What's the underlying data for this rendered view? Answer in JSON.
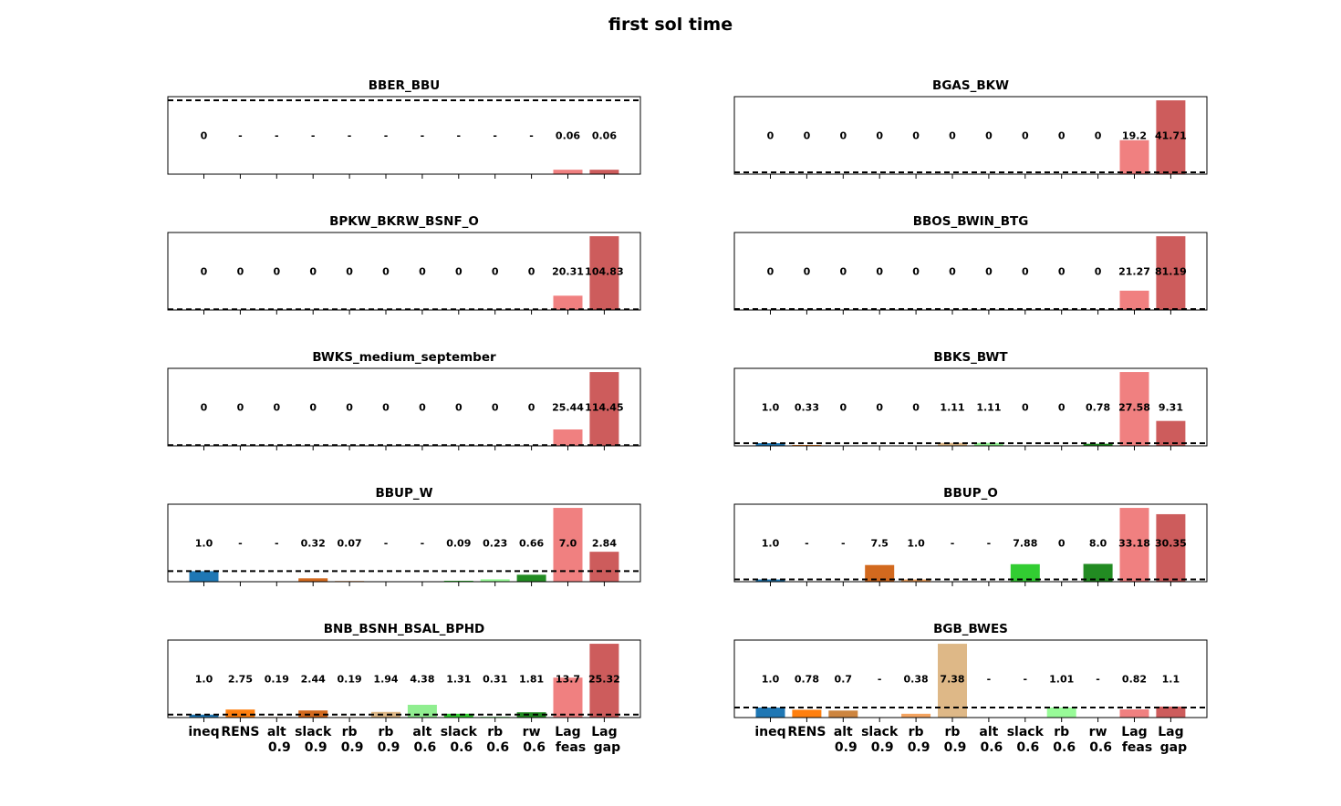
{
  "figure": {
    "title": "first sol time"
  },
  "categories": [
    [
      "ineq"
    ],
    [
      "RENS"
    ],
    [
      "alt",
      "0.9"
    ],
    [
      "slack",
      "0.9"
    ],
    [
      "rb",
      "0.9"
    ],
    [
      "rb",
      "0.9"
    ],
    [
      "alt",
      "0.6"
    ],
    [
      "slack",
      "0.6"
    ],
    [
      "rb",
      "0.6"
    ],
    [
      "rw",
      "0.6"
    ],
    [
      "Lag",
      "feas"
    ],
    [
      "Lag",
      "gap"
    ]
  ],
  "colors": [
    "#1f77b4",
    "#ff7f0e",
    "#cd853f",
    "#d2691e",
    "#f4a460",
    "#deb887",
    "#90ee90",
    "#32cd32",
    "#98fb98",
    "#228b22",
    "#f08080",
    "#cd5c5c"
  ],
  "chart_data": [
    {
      "type": "bar",
      "title": "BBER_BBU",
      "reference_line": 1.0,
      "ylim": [
        0,
        1.05
      ],
      "values": [
        0,
        null,
        null,
        null,
        null,
        null,
        null,
        null,
        null,
        null,
        0.06,
        0.06
      ],
      "labels": [
        "0",
        "-",
        "-",
        "-",
        "-",
        "-",
        "-",
        "-",
        "-",
        "-",
        "0.06",
        "0.06"
      ]
    },
    {
      "type": "bar",
      "title": "BGAS_BKW",
      "reference_line": 1.0,
      "ylim": [
        0,
        43.8
      ],
      "values": [
        0,
        0,
        0,
        0,
        0,
        0,
        0,
        0,
        0,
        0,
        19.2,
        41.71
      ],
      "labels": [
        "0",
        "0",
        "0",
        "0",
        "0",
        "0",
        "0",
        "0",
        "0",
        "0",
        "19.2",
        "41.71"
      ]
    },
    {
      "type": "bar",
      "title": "BPKW_BKRW_BSNF_O",
      "reference_line": 1.0,
      "ylim": [
        0,
        110.1
      ],
      "values": [
        0,
        0,
        0,
        0,
        0,
        0,
        0,
        0,
        0,
        0,
        20.31,
        104.83
      ],
      "labels": [
        "0",
        "0",
        "0",
        "0",
        "0",
        "0",
        "0",
        "0",
        "0",
        "0",
        "20.31",
        "104.83"
      ]
    },
    {
      "type": "bar",
      "title": "BBOS_BWIN_BTG",
      "reference_line": 1.0,
      "ylim": [
        0,
        85.3
      ],
      "values": [
        0,
        0,
        0,
        0,
        0,
        0,
        0,
        0,
        0,
        0,
        21.27,
        81.19
      ],
      "labels": [
        "0",
        "0",
        "0",
        "0",
        "0",
        "0",
        "0",
        "0",
        "0",
        "0",
        "21.27",
        "81.19"
      ]
    },
    {
      "type": "bar",
      "title": "BWKS_medium_september",
      "reference_line": 1.0,
      "ylim": [
        0,
        120.2
      ],
      "values": [
        0,
        0,
        0,
        0,
        0,
        0,
        0,
        0,
        0,
        0,
        25.44,
        114.45
      ],
      "labels": [
        "0",
        "0",
        "0",
        "0",
        "0",
        "0",
        "0",
        "0",
        "0",
        "0",
        "25.44",
        "114.45"
      ]
    },
    {
      "type": "bar",
      "title": "BBKS_BWT",
      "reference_line": 1.0,
      "ylim": [
        0,
        28.96
      ],
      "values": [
        1.0,
        0.33,
        0,
        0,
        0,
        1.11,
        1.11,
        0,
        0,
        0.78,
        27.58,
        9.31
      ],
      "labels": [
        "1.0",
        "0.33",
        "0",
        "0",
        "0",
        "1.11",
        "1.11",
        "0",
        "0",
        "0.78",
        "27.58",
        "9.31"
      ]
    },
    {
      "type": "bar",
      "title": "BBUP_W",
      "reference_line": 1.0,
      "ylim": [
        0,
        7.35
      ],
      "values": [
        1.0,
        null,
        null,
        0.32,
        0.07,
        null,
        null,
        0.09,
        0.23,
        0.66,
        7.0,
        2.84
      ],
      "labels": [
        "1.0",
        "-",
        "-",
        "0.32",
        "0.07",
        "-",
        "-",
        "0.09",
        "0.23",
        "0.66",
        "7.0",
        "2.84"
      ]
    },
    {
      "type": "bar",
      "title": "BBUP_O",
      "reference_line": 1.0,
      "ylim": [
        0,
        34.84
      ],
      "values": [
        1.0,
        null,
        null,
        7.5,
        1.0,
        null,
        null,
        7.88,
        0,
        8.0,
        33.18,
        30.35
      ],
      "labels": [
        "1.0",
        "-",
        "-",
        "7.5",
        "1.0",
        "-",
        "-",
        "7.88",
        "0",
        "8.0",
        "33.18",
        "30.35"
      ]
    },
    {
      "type": "bar",
      "title": "BNB_BSNH_BSAL_BPHD",
      "reference_line": 1.0,
      "ylim": [
        0,
        26.59
      ],
      "values": [
        1.0,
        2.75,
        0.19,
        2.44,
        0.19,
        1.94,
        4.38,
        1.31,
        0.31,
        1.81,
        13.7,
        25.32
      ],
      "labels": [
        "1.0",
        "2.75",
        "0.19",
        "2.44",
        "0.19",
        "1.94",
        "4.38",
        "1.31",
        "0.31",
        "1.81",
        "13.7",
        "25.32"
      ]
    },
    {
      "type": "bar",
      "title": "BGB_BWES",
      "reference_line": 1.0,
      "ylim": [
        0,
        7.75
      ],
      "values": [
        1.0,
        0.78,
        0.7,
        null,
        0.38,
        7.38,
        null,
        null,
        1.01,
        null,
        0.82,
        1.1
      ],
      "labels": [
        "1.0",
        "0.78",
        "0.7",
        "-",
        "0.38",
        "7.38",
        "-",
        "-",
        "1.01",
        "-",
        "0.82",
        "1.1"
      ]
    }
  ]
}
